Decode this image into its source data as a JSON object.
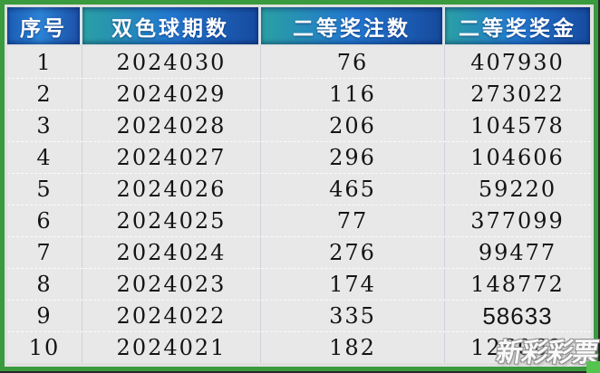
{
  "chart_data": {
    "type": "table",
    "title": "",
    "columns": [
      "序号",
      "双色球期数",
      "二等奖注数",
      "二等奖奖金"
    ],
    "rows": [
      [
        "1",
        "2024030",
        "76",
        "407930"
      ],
      [
        "2",
        "2024029",
        "116",
        "273022"
      ],
      [
        "3",
        "2024028",
        "206",
        "104578"
      ],
      [
        "4",
        "2024027",
        "296",
        "104606"
      ],
      [
        "5",
        "2024026",
        "465",
        "59220"
      ],
      [
        "6",
        "2024025",
        "77",
        "377099"
      ],
      [
        "7",
        "2024024",
        "276",
        "99477"
      ],
      [
        "8",
        "2024023",
        "174",
        "148772"
      ],
      [
        "9",
        "2024022",
        "335",
        "58633"
      ],
      [
        "10",
        "2024021",
        "182",
        "126062"
      ]
    ]
  },
  "watermark": {
    "text": "新彩彩票"
  },
  "colors": {
    "border_green": "#3a9a3e",
    "corner_green": "#55c44e",
    "header_teal": "#2aa0a4",
    "header_blue": "#2b83d6",
    "header_dark_blue": "#164a9e",
    "header_separator": "#dbe4ec",
    "row_background": "#e8e8e8",
    "cell_text": "#141414",
    "header_text": "#ffffff"
  }
}
